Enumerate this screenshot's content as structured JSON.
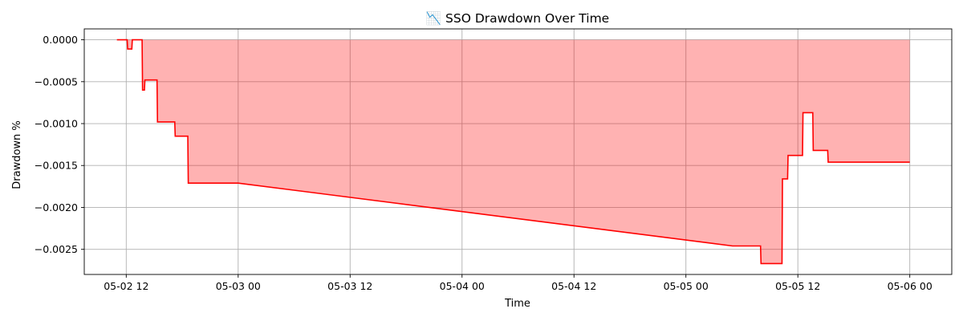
{
  "chart_data": {
    "type": "area",
    "title": "📉 SSO Drawdown Over Time",
    "xlabel": "Time",
    "ylabel": "Drawdown %",
    "x_tick_labels": [
      "05-02 12",
      "05-03 00",
      "05-03 12",
      "05-04 00",
      "05-04 12",
      "05-05 00",
      "05-05 12",
      "05-06 00"
    ],
    "x_ticks_hours": [
      36,
      48,
      60,
      72,
      84,
      96,
      108,
      120
    ],
    "y_ticks": [
      0.0,
      -0.0005,
      -0.001,
      -0.0015,
      -0.002,
      -0.0025
    ],
    "y_tick_labels": [
      "0.0000",
      "−0.0005",
      "−0.0010",
      "−0.0015",
      "−0.0020",
      "−0.0025"
    ],
    "xlim_hours": [
      31.5,
      124.5
    ],
    "ylim": [
      -0.0028,
      0.00013
    ],
    "grid": true,
    "x_axis_reference": "hours from 05-01 00",
    "line_color": "#ff0000",
    "fill_color": "#ff0000",
    "fill_alpha": 0.3,
    "series": [
      {
        "points": [
          [
            35.0,
            0.0
          ],
          [
            36.1,
            0.0
          ],
          [
            36.15,
            -0.00011
          ],
          [
            36.6,
            -0.00011
          ],
          [
            36.65,
            0.0
          ],
          [
            37.7,
            0.0
          ],
          [
            37.75,
            -0.0006
          ],
          [
            37.95,
            -0.0006
          ],
          [
            38.0,
            -0.00048
          ],
          [
            39.3,
            -0.00048
          ],
          [
            39.35,
            -0.00098
          ],
          [
            41.2,
            -0.00098
          ],
          [
            41.25,
            -0.00115
          ],
          [
            42.6,
            -0.00115
          ],
          [
            42.65,
            -0.00171
          ],
          [
            48.0,
            -0.00171
          ],
          [
            101.0,
            -0.00246
          ],
          [
            104.0,
            -0.00246
          ],
          [
            104.05,
            -0.00267
          ],
          [
            106.3,
            -0.00267
          ],
          [
            106.35,
            -0.00166
          ],
          [
            106.9,
            -0.00166
          ],
          [
            106.95,
            -0.00138
          ],
          [
            108.5,
            -0.00138
          ],
          [
            108.55,
            -0.00087
          ],
          [
            109.6,
            -0.00087
          ],
          [
            109.65,
            -0.00132
          ],
          [
            111.2,
            -0.00132
          ],
          [
            111.25,
            -0.00146
          ],
          [
            120.0,
            -0.00146
          ]
        ]
      }
    ]
  }
}
